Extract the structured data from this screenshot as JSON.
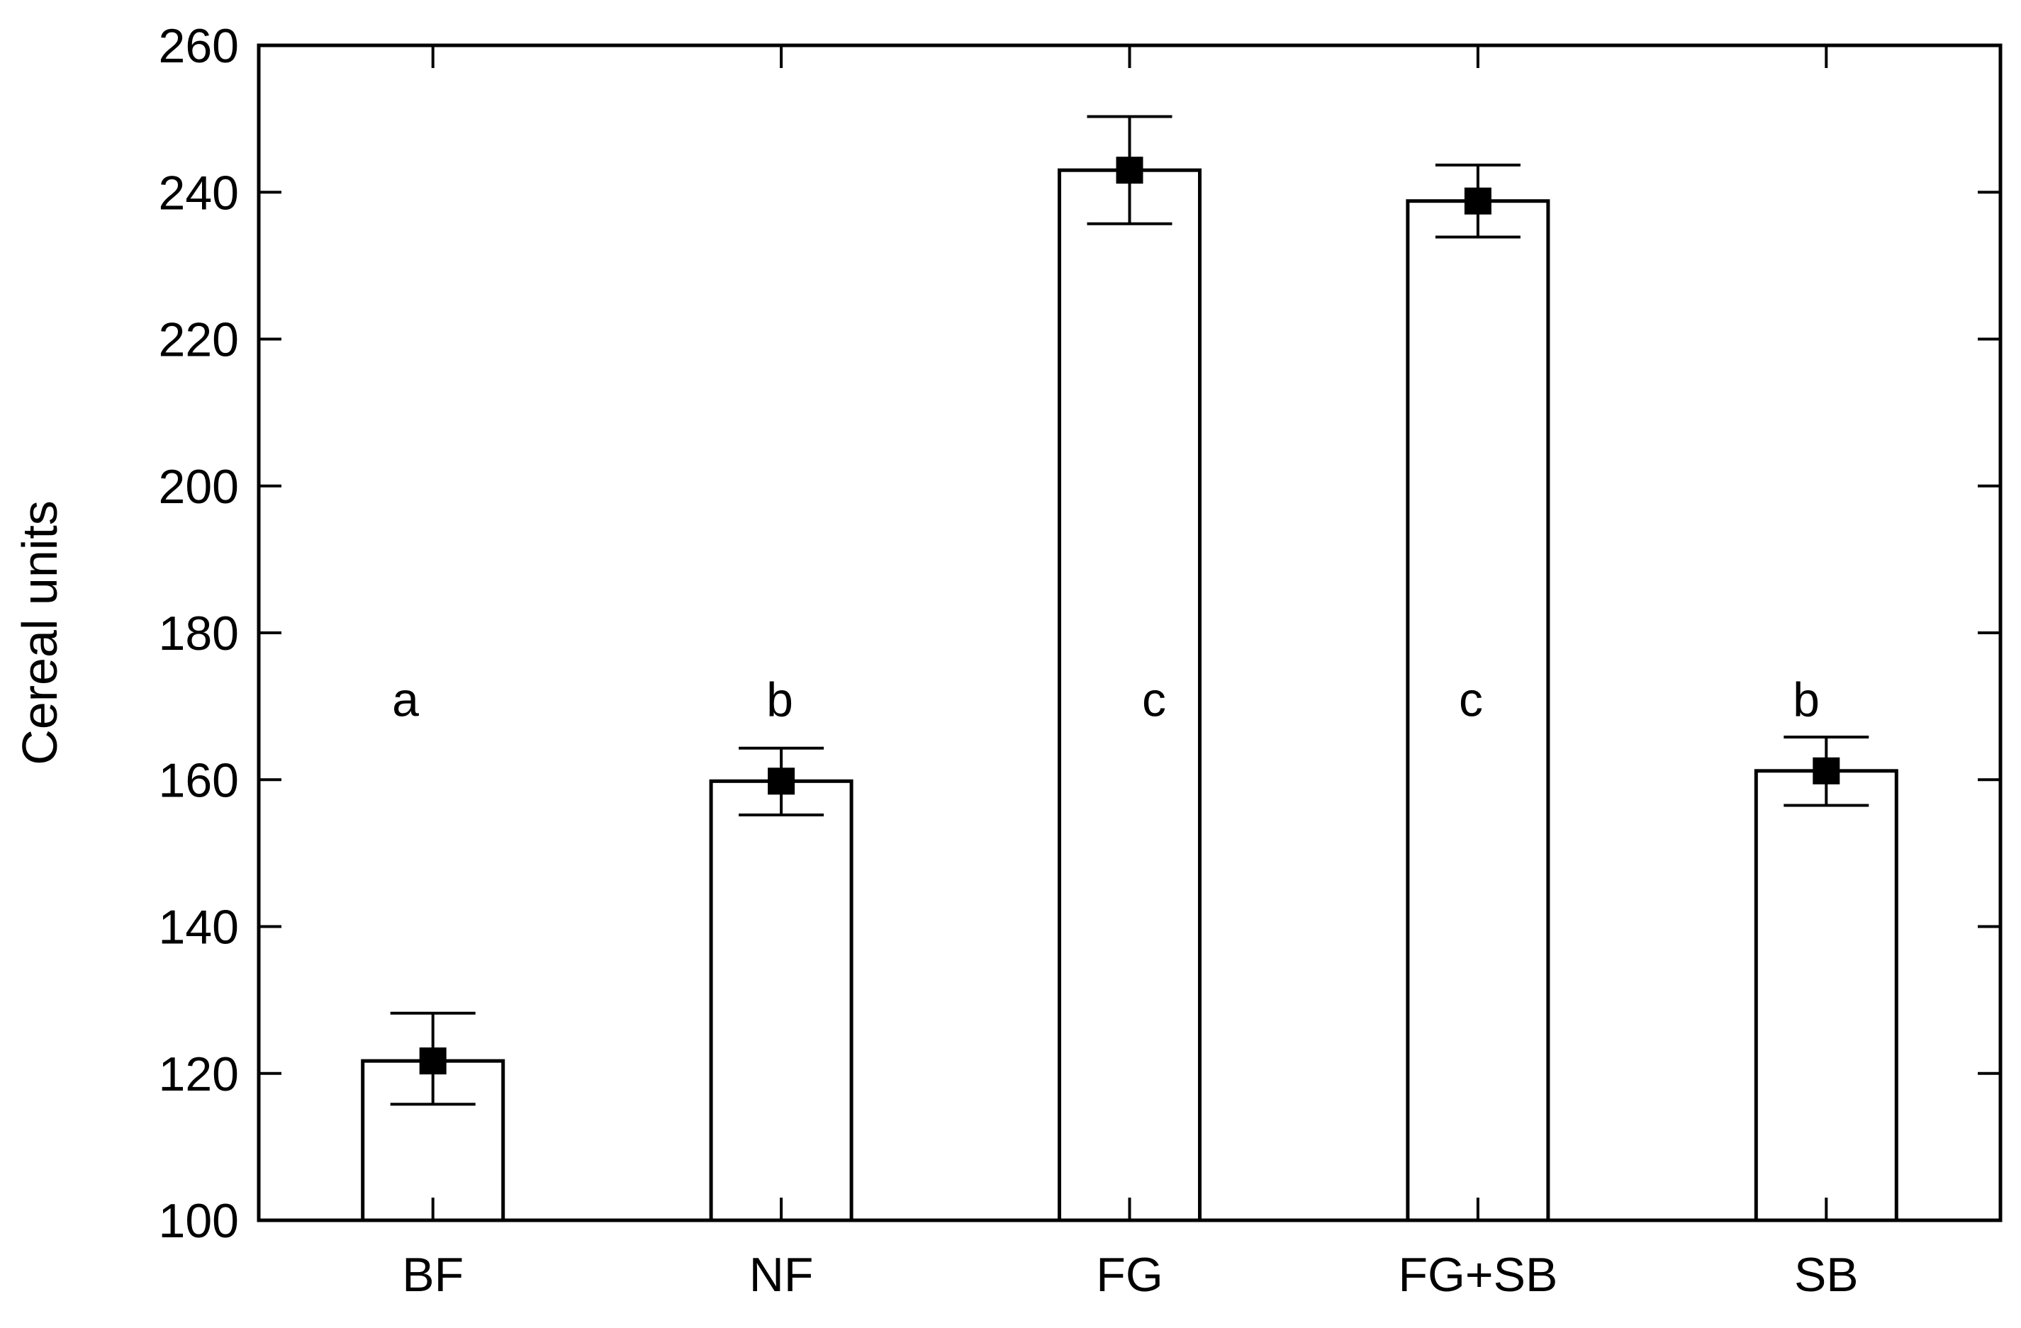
{
  "chart_data": {
    "type": "bar",
    "title": "",
    "xlabel": "",
    "ylabel": "Cereal units",
    "ylim": [
      100,
      260
    ],
    "yticks": [
      100,
      120,
      140,
      160,
      180,
      200,
      220,
      240,
      260
    ],
    "categories": [
      "BF",
      "NF",
      "FG",
      "FG+SB",
      "SB"
    ],
    "values": [
      121.7,
      159.8,
      243.0,
      238.8,
      161.2
    ],
    "error_low": [
      115.8,
      155.2,
      235.7,
      233.9,
      156.5
    ],
    "error_high": [
      128.2,
      164.3,
      250.3,
      243.7,
      165.8
    ],
    "significance_letters": [
      "a",
      "b",
      "c",
      "c",
      "b"
    ],
    "significance_y": 171,
    "grid": false,
    "legend": "none",
    "colors": {
      "bar_fill": "#ffffff",
      "bar_stroke": "#000000",
      "marker": "#000000"
    }
  }
}
